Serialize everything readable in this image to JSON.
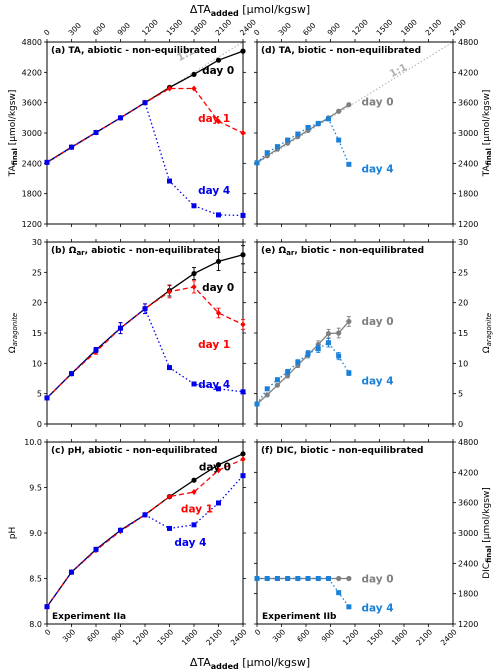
{
  "figure": {
    "top_axis_label": "ΔTA",
    "top_axis_sub": "added",
    "top_axis_unit": " [µmol/kgsw]",
    "bottom_axis_label": "ΔTA",
    "bottom_axis_sub": "added",
    "bottom_axis_unit": " [µmol/kgsw]",
    "exp_left": "Experiment IIa",
    "exp_right": "Experiment IIb",
    "oneone": "1:1"
  },
  "colors": {
    "day0": "#000000",
    "day1": "#ff0000",
    "day4": "#0000ee",
    "bio_day0": "#7f7f7f",
    "bio_day4": "#1a80d8"
  },
  "chart_data": [
    {
      "panel": "a",
      "type": "line",
      "title": "(a) TA, abiotic - non-equilibrated",
      "ylabel": "TA",
      "ylabel_sub": "final",
      "ylabel_unit": " [µmol/kgsw]",
      "xlim": [
        0,
        2400
      ],
      "ylim": [
        1200,
        4800
      ],
      "xticks": [
        0,
        300,
        600,
        900,
        1200,
        1500,
        1800,
        2100,
        2400
      ],
      "yticks": [
        1200,
        1800,
        2400,
        3000,
        3600,
        4200,
        4800
      ],
      "yaxis_side": "left",
      "one_to_one": true,
      "series": [
        {
          "name": "day 0",
          "color": "#000000",
          "marker": "circle",
          "dash": "solid",
          "x": [
            0,
            300,
            600,
            900,
            1200,
            1500,
            1800,
            2100,
            2400
          ],
          "y": [
            2420,
            2720,
            3010,
            3300,
            3600,
            3900,
            4160,
            4440,
            4620
          ]
        },
        {
          "name": "day 1",
          "color": "#ff0000",
          "marker": "diamond",
          "dash": "dashed",
          "x": [
            0,
            300,
            600,
            900,
            1200,
            1500,
            1800,
            2100,
            2400
          ],
          "y": [
            2420,
            2720,
            3010,
            3300,
            3600,
            3880,
            3880,
            3230,
            3000
          ]
        },
        {
          "name": "day 4",
          "color": "#0000ee",
          "marker": "square",
          "dash": "dotted",
          "x": [
            0,
            300,
            600,
            900,
            1200,
            1500,
            1800,
            2100,
            2400
          ],
          "y": [
            2420,
            2720,
            3010,
            3300,
            3600,
            2050,
            1560,
            1380,
            1370
          ]
        }
      ],
      "labels": [
        {
          "text": "day 0",
          "color": "#000000",
          "x": 1900,
          "y": 4250
        },
        {
          "text": "day 1",
          "color": "#ff0000",
          "x": 1850,
          "y": 3300
        },
        {
          "text": "day 4",
          "color": "#0000ee",
          "x": 1850,
          "y": 1870
        }
      ]
    },
    {
      "panel": "d",
      "type": "line",
      "title": "(d) TA, biotic - non-equilibrated",
      "ylabel": "TA",
      "ylabel_sub": "final",
      "ylabel_unit": " [µmol/kgsw]",
      "xlim": [
        0,
        2400
      ],
      "ylim": [
        1200,
        4800
      ],
      "xticks": [
        0,
        300,
        600,
        900,
        1200,
        1500,
        1800,
        2100,
        2400
      ],
      "yticks": [
        1200,
        1800,
        2400,
        3000,
        3600,
        4200,
        4800
      ],
      "yaxis_side": "right",
      "one_to_one": true,
      "series": [
        {
          "name": "day 0",
          "color": "#7f7f7f",
          "marker": "circle",
          "dash": "solid",
          "x": [
            0,
            125,
            250,
            375,
            500,
            625,
            750,
            875,
            1000,
            1125
          ],
          "y": [
            2410,
            2550,
            2680,
            2800,
            2930,
            3050,
            3180,
            3300,
            3430,
            3560
          ]
        },
        {
          "name": "day 4",
          "color": "#1a80d8",
          "marker": "square",
          "dash": "dotted",
          "x": [
            0,
            125,
            250,
            375,
            500,
            625,
            750,
            875,
            1000,
            1125
          ],
          "y": [
            2410,
            2610,
            2730,
            2860,
            2980,
            3110,
            3190,
            3280,
            2860,
            2380
          ]
        }
      ],
      "labels": [
        {
          "text": "day 0",
          "color": "#7f7f7f",
          "x": 1280,
          "y": 3620
        },
        {
          "text": "day 4",
          "color": "#1a80d8",
          "x": 1280,
          "y": 2300
        }
      ]
    },
    {
      "panel": "b",
      "type": "line",
      "title": "(b) Ω",
      "title_sub": "ar",
      "title_rest": ", abiotic - non-equilibrated",
      "ylabel": "Ω",
      "ylabel_sub": "aragonite",
      "ylabel_unit": "",
      "xlim": [
        0,
        2400
      ],
      "ylim": [
        0,
        30
      ],
      "xticks": [
        0,
        300,
        600,
        900,
        1200,
        1500,
        1800,
        2100,
        2400
      ],
      "yticks": [
        0,
        5,
        10,
        15,
        20,
        25,
        30
      ],
      "yaxis_side": "left",
      "one_to_one": false,
      "series": [
        {
          "name": "day 0",
          "color": "#000000",
          "marker": "circle",
          "dash": "solid",
          "x": [
            0,
            300,
            600,
            900,
            1200,
            1500,
            1800,
            2100,
            2400
          ],
          "y": [
            4.3,
            8.3,
            12.2,
            15.8,
            19.0,
            22.0,
            24.8,
            26.8,
            27.9
          ],
          "err": [
            0.3,
            0.3,
            0.4,
            0.9,
            0.8,
            0.9,
            1.0,
            1.5,
            1.5
          ]
        },
        {
          "name": "day 1",
          "color": "#ff0000",
          "marker": "diamond",
          "dash": "dashed",
          "x": [
            0,
            300,
            600,
            900,
            1200,
            1500,
            1800,
            2100,
            2400
          ],
          "y": [
            4.3,
            8.3,
            11.9,
            15.8,
            19.0,
            21.8,
            22.6,
            18.3,
            16.4
          ],
          "err": [
            0.3,
            0.3,
            0.4,
            0.9,
            0.8,
            1.0,
            1.0,
            0.8,
            0.8
          ]
        },
        {
          "name": "day 4",
          "color": "#0000ee",
          "marker": "square",
          "dash": "dotted",
          "x": [
            0,
            300,
            600,
            900,
            1200,
            1500,
            1800,
            2100,
            2400
          ],
          "y": [
            4.3,
            8.3,
            12.2,
            15.8,
            19.0,
            9.3,
            6.6,
            5.8,
            5.3
          ],
          "err": [
            0.3,
            0.3,
            0.4,
            0.9,
            0.8,
            0.3,
            0.3,
            0.3,
            0.3
          ]
        }
      ],
      "labels": [
        {
          "text": "day 0",
          "color": "#000000",
          "x": 1900,
          "y": 22.6
        },
        {
          "text": "day 1",
          "color": "#ff0000",
          "x": 1850,
          "y": 13.2
        },
        {
          "text": "day 4",
          "color": "#0000ee",
          "x": 1850,
          "y": 6.6
        }
      ]
    },
    {
      "panel": "e",
      "type": "line",
      "title": "(e) Ω",
      "title_sub": "ar",
      "title_rest": ", biotic - non-equilibrated",
      "ylabel": "Ω",
      "ylabel_sub": "aragonite",
      "ylabel_unit": "",
      "xlim": [
        0,
        2400
      ],
      "ylim": [
        0,
        30
      ],
      "xticks": [
        0,
        300,
        600,
        900,
        1200,
        1500,
        1800,
        2100,
        2400
      ],
      "yticks": [
        0,
        5,
        10,
        15,
        20,
        25,
        30
      ],
      "yaxis_side": "right",
      "one_to_one": false,
      "series": [
        {
          "name": "day 0",
          "color": "#7f7f7f",
          "marker": "circle",
          "dash": "solid",
          "x": [
            0,
            125,
            250,
            375,
            500,
            625,
            750,
            875,
            1000,
            1125
          ],
          "y": [
            3.3,
            4.8,
            6.4,
            8.0,
            9.7,
            11.4,
            13.1,
            14.9,
            15.0,
            16.9
          ],
          "err": [
            0.3,
            0.3,
            0.3,
            0.4,
            0.4,
            0.5,
            0.6,
            0.7,
            0.8,
            0.8
          ]
        },
        {
          "name": "day 4",
          "color": "#1a80d8",
          "marker": "square",
          "dash": "dotted",
          "x": [
            0,
            125,
            250,
            375,
            500,
            625,
            750,
            875,
            1000,
            1125
          ],
          "y": [
            3.3,
            5.8,
            7.3,
            8.6,
            10.2,
            11.6,
            12.4,
            13.4,
            11.2,
            8.4
          ],
          "err": [
            0.3,
            0.3,
            0.3,
            0.4,
            0.4,
            0.5,
            0.6,
            0.7,
            0.6,
            0.4
          ]
        }
      ],
      "labels": [
        {
          "text": "day 0",
          "color": "#7f7f7f",
          "x": 1280,
          "y": 17.0
        },
        {
          "text": "day 4",
          "color": "#1a80d8",
          "x": 1280,
          "y": 7.2
        }
      ]
    },
    {
      "panel": "c",
      "type": "line",
      "title": "(c) pH, abiotic - non-equilibrated",
      "ylabel": "pH",
      "ylabel_sub": "",
      "ylabel_unit": "",
      "xlim": [
        0,
        2400
      ],
      "ylim": [
        8.0,
        10.0
      ],
      "xticks": [
        0,
        300,
        600,
        900,
        1200,
        1500,
        1800,
        2100,
        2400
      ],
      "yticks": [
        8.0,
        8.5,
        9.0,
        9.5,
        10.0
      ],
      "yaxis_side": "left",
      "one_to_one": false,
      "series": [
        {
          "name": "day 0",
          "color": "#000000",
          "marker": "circle",
          "dash": "solid",
          "x": [
            0,
            300,
            600,
            900,
            1200,
            1500,
            1800,
            2100,
            2400
          ],
          "y": [
            8.19,
            8.57,
            8.82,
            9.03,
            9.2,
            9.4,
            9.58,
            9.75,
            9.87
          ]
        },
        {
          "name": "day 1",
          "color": "#ff0000",
          "marker": "diamond",
          "dash": "dashed",
          "x": [
            0,
            300,
            600,
            900,
            1200,
            1500,
            1800,
            2100,
            2400
          ],
          "y": [
            8.19,
            8.57,
            8.81,
            9.02,
            9.2,
            9.4,
            9.45,
            9.69,
            9.81
          ]
        },
        {
          "name": "day 4",
          "color": "#0000ee",
          "marker": "square",
          "dash": "dotted",
          "x": [
            0,
            300,
            600,
            900,
            1200,
            1500,
            1800,
            2100,
            2400
          ],
          "y": [
            8.19,
            8.57,
            8.82,
            9.03,
            9.2,
            9.05,
            9.09,
            9.33,
            9.63
          ]
        }
      ],
      "labels": [
        {
          "text": "day 0",
          "color": "#000000",
          "x": 1860,
          "y": 9.73
        },
        {
          "text": "day 1",
          "color": "#ff0000",
          "x": 1640,
          "y": 9.27
        },
        {
          "text": "day 4",
          "color": "#0000ee",
          "x": 1560,
          "y": 8.9
        }
      ]
    },
    {
      "panel": "f",
      "type": "line",
      "title": "(f) DIC, biotic - non-equilibrated",
      "ylabel": "DIC",
      "ylabel_sub": "final",
      "ylabel_unit": " [µmol/kgsw]",
      "xlim": [
        0,
        2400
      ],
      "ylim": [
        1200,
        4800
      ],
      "xticks": [
        0,
        300,
        600,
        900,
        1200,
        1500,
        1800,
        2100,
        2400
      ],
      "yticks": [
        1200,
        1800,
        2400,
        3000,
        3600,
        4200,
        4800
      ],
      "yaxis_side": "right",
      "one_to_one": false,
      "series": [
        {
          "name": "day 0",
          "color": "#7f7f7f",
          "marker": "circle",
          "dash": "solid",
          "x": [
            0,
            125,
            250,
            375,
            500,
            625,
            750,
            875,
            1000,
            1125
          ],
          "y": [
            2100,
            2100,
            2100,
            2100,
            2100,
            2100,
            2100,
            2100,
            2100,
            2100
          ]
        },
        {
          "name": "day 4",
          "color": "#1a80d8",
          "marker": "square",
          "dash": "dotted",
          "x": [
            0,
            125,
            250,
            375,
            500,
            625,
            750,
            875,
            1000,
            1125
          ],
          "y": [
            2100,
            2100,
            2100,
            2100,
            2100,
            2100,
            2100,
            2100,
            1820,
            1540
          ]
        }
      ],
      "labels": [
        {
          "text": "day 0",
          "color": "#7f7f7f",
          "x": 1280,
          "y": 2100
        },
        {
          "text": "day 4",
          "color": "#1a80d8",
          "x": 1280,
          "y": 1530
        }
      ]
    }
  ]
}
